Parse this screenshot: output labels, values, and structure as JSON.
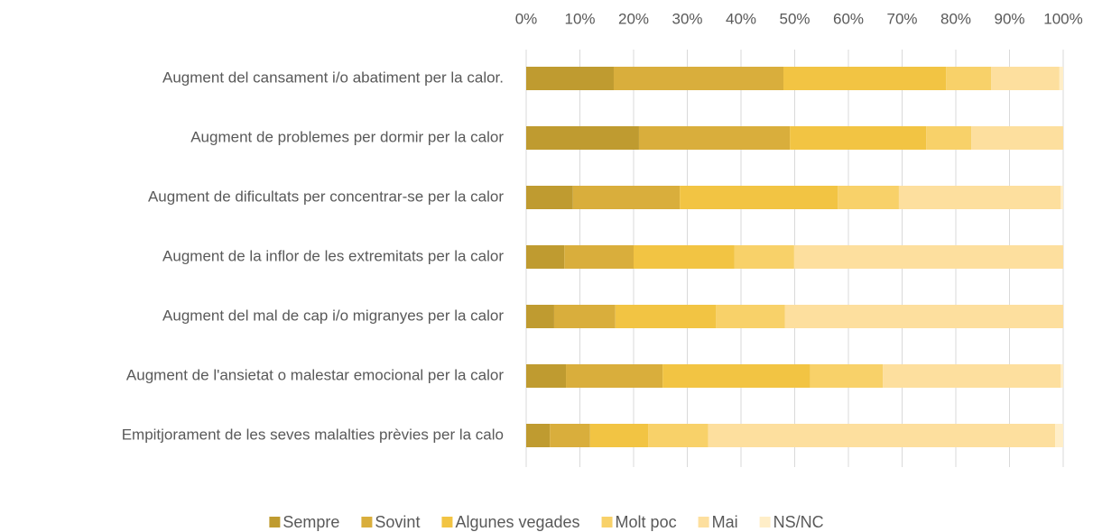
{
  "chart_data": {
    "type": "stacked_barh",
    "categories": [
      "Augment del cansament i/o abatiment per la calor.",
      "Augment de problemes per dormir per la calor",
      "Augment de dificultats per concentrar-se per la calor",
      "Augment de la inflor de les extremitats per la calor",
      "Augment del mal de cap i/o migranyes per la calor",
      "Augment de l'ansietat o malestar emocional per la calor",
      "Empitjorament de les seves malalties prèvies per la calo"
    ],
    "series": [
      {
        "name": "Sempre",
        "color": "#bf9b30",
        "values": [
          16.3,
          21.0,
          8.7,
          7.1,
          5.2,
          7.4,
          4.4
        ]
      },
      {
        "name": "Sovint",
        "color": "#d9ae3c",
        "values": [
          31.6,
          28.1,
          19.9,
          12.9,
          11.4,
          18.0,
          7.5
        ]
      },
      {
        "name": "Algunes vegades",
        "color": "#f2c443",
        "values": [
          30.3,
          25.4,
          29.4,
          18.8,
          18.7,
          27.5,
          10.8
        ]
      },
      {
        "name": "Molt poc",
        "color": "#f8d169",
        "values": [
          8.4,
          8.4,
          11.4,
          11.1,
          12.9,
          13.5,
          11.2
        ]
      },
      {
        "name": "Mai",
        "color": "#fddf9e",
        "values": [
          12.7,
          17.1,
          30.1,
          50.1,
          51.8,
          33.1,
          64.6
        ]
      },
      {
        "name": "NS/NC",
        "color": "#ffeec8",
        "values": [
          0.7,
          0,
          0.5,
          0,
          0,
          0.5,
          1.5
        ]
      }
    ],
    "xlim": [
      0,
      100
    ],
    "xticks": [
      {
        "value": 0,
        "label": "0%"
      },
      {
        "value": 10,
        "label": "10%"
      },
      {
        "value": 20,
        "label": "20%"
      },
      {
        "value": 30,
        "label": "30%"
      },
      {
        "value": 40,
        "label": "40%"
      },
      {
        "value": 50,
        "label": "50%"
      },
      {
        "value": 60,
        "label": "60%"
      },
      {
        "value": 70,
        "label": "70%"
      },
      {
        "value": 80,
        "label": "80%"
      },
      {
        "value": 90,
        "label": "90%"
      },
      {
        "value": 100,
        "label": "100%"
      }
    ],
    "grid": true,
    "legend": "bottom"
  }
}
